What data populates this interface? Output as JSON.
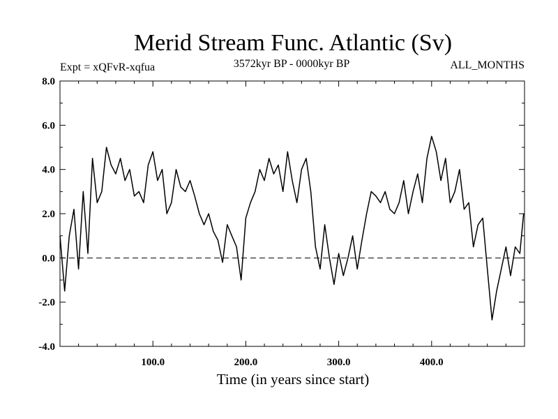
{
  "chart_data": {
    "type": "line",
    "title": "Merid Stream Func. Atlantic (Sv)",
    "subtitle_left": "Expt = xQFvR-xqfua",
    "subtitle_center": "3572kyr BP - 0000kyr BP",
    "subtitle_right": "ALL_MONTHS",
    "xlabel": "Time (in years since start)",
    "ylabel": "",
    "xlim": [
      0,
      500
    ],
    "ylim": [
      -4.0,
      8.0
    ],
    "xticks": [
      100,
      200,
      300,
      400
    ],
    "xtick_labels": [
      "100.0",
      "200.0",
      "300.0",
      "400.0"
    ],
    "yticks": [
      -4,
      -2,
      0,
      2,
      4,
      6,
      8
    ],
    "ytick_labels": [
      "-4.0",
      "-2.0",
      "0.0",
      "2.0",
      "4.0",
      "6.0",
      "8.0"
    ],
    "reference_line": 0.0,
    "series": [
      {
        "name": "Merid Stream Func. Atlantic",
        "x": [
          0,
          5,
          10,
          15,
          20,
          25,
          30,
          35,
          40,
          45,
          50,
          55,
          60,
          65,
          70,
          75,
          80,
          85,
          90,
          95,
          100,
          105,
          110,
          115,
          120,
          125,
          130,
          135,
          140,
          145,
          150,
          155,
          160,
          165,
          170,
          175,
          180,
          185,
          190,
          195,
          200,
          205,
          210,
          215,
          220,
          225,
          230,
          235,
          240,
          245,
          250,
          255,
          260,
          265,
          270,
          275,
          280,
          285,
          290,
          295,
          300,
          305,
          310,
          315,
          320,
          325,
          330,
          335,
          340,
          345,
          350,
          355,
          360,
          365,
          370,
          375,
          380,
          385,
          390,
          395,
          400,
          405,
          410,
          415,
          420,
          425,
          430,
          435,
          440,
          445,
          450,
          455,
          460,
          465,
          470,
          475,
          480,
          485,
          490,
          495,
          499
        ],
        "values": [
          1.0,
          -1.5,
          1.0,
          2.2,
          -0.5,
          3.0,
          0.2,
          4.5,
          2.5,
          3.0,
          5.0,
          4.2,
          3.8,
          4.5,
          3.5,
          4.0,
          2.8,
          3.0,
          2.5,
          4.2,
          4.8,
          3.5,
          4.0,
          2.0,
          2.5,
          4.0,
          3.2,
          3.0,
          3.5,
          2.8,
          2.0,
          1.5,
          2.0,
          1.2,
          0.8,
          -0.2,
          1.5,
          1.0,
          0.5,
          -1.0,
          1.8,
          2.5,
          3.0,
          4.0,
          3.5,
          4.5,
          3.8,
          4.2,
          3.0,
          4.8,
          3.5,
          2.5,
          4.0,
          4.5,
          3.0,
          0.5,
          -0.5,
          1.5,
          0.0,
          -1.2,
          0.2,
          -0.8,
          0.0,
          1.0,
          -0.5,
          0.8,
          2.0,
          3.0,
          2.8,
          2.5,
          3.0,
          2.2,
          2.0,
          2.5,
          3.5,
          2.0,
          3.0,
          3.8,
          2.5,
          4.5,
          5.5,
          4.8,
          3.5,
          4.5,
          2.5,
          3.0,
          4.0,
          2.2,
          2.5,
          0.5,
          1.5,
          1.8,
          -0.5,
          -2.8,
          -1.5,
          -0.5,
          0.5,
          -0.8,
          0.5,
          0.2,
          2.0
        ]
      }
    ]
  }
}
